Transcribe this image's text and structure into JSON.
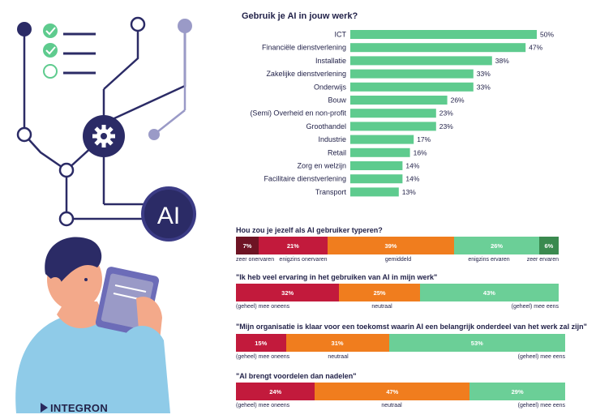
{
  "brand": {
    "name": "INTEGRON"
  },
  "colors": {
    "bar_green": "#5ecb8e",
    "dark_red": "#6e1424",
    "red": "#c21a3c",
    "orange": "#f07d1e",
    "green": "#6bcf97",
    "dark_green": "#3a8a4f",
    "navy": "#2b2b66"
  },
  "illustration": {
    "ai_label": "AI",
    "icons": [
      "check-icon",
      "check-icon",
      "empty-circle-icon",
      "gear-icon"
    ]
  },
  "chart_data": [
    {
      "type": "bar",
      "orientation": "horizontal",
      "title": "Gebruik je AI in jouw werk?",
      "categories": [
        "ICT",
        "Financiële dienstverlening",
        "Installatie",
        "Zakelijke dienstverlening",
        "Onderwijs",
        "Bouw",
        "(Semi) Overheid en non-profit",
        "Groothandel",
        "Industrie",
        "Retail",
        "Zorg en welzijn",
        "Facilitaire dienstverlening",
        "Transport"
      ],
      "values": [
        50,
        47,
        38,
        33,
        33,
        26,
        23,
        23,
        17,
        16,
        14,
        14,
        13
      ],
      "value_labels": [
        "50%",
        "47%",
        "38%",
        "33%",
        "33%",
        "26%",
        "23%",
        "23%",
        "17%",
        "16%",
        "14%",
        "14%",
        "13%"
      ],
      "xlim": [
        0,
        50
      ]
    },
    {
      "type": "bar",
      "orientation": "stacked-horizontal",
      "title": "Hou zou je jezelf als AI gebruiker typeren?",
      "segments": [
        {
          "value": 7,
          "label": "7%",
          "color": "#6e1424"
        },
        {
          "value": 21,
          "label": "21%",
          "color": "#c21a3c"
        },
        {
          "value": 39,
          "label": "39%",
          "color": "#f07d1e"
        },
        {
          "value": 26,
          "label": "26%",
          "color": "#6bcf97"
        },
        {
          "value": 6,
          "label": "6%",
          "color": "#3a8a4f"
        }
      ],
      "axis_labels": [
        "zeer onervaren",
        "enigzins onervaren",
        "gemiddeld",
        "enigzins ervaren",
        "zeer ervaren"
      ]
    },
    {
      "type": "bar",
      "orientation": "stacked-horizontal",
      "title": "\"Ik heb veel ervaring in het gebruiken van AI in mijn werk\"",
      "segments": [
        {
          "value": 32,
          "label": "32%",
          "color": "#c21a3c"
        },
        {
          "value": 25,
          "label": "25%",
          "color": "#f07d1e"
        },
        {
          "value": 43,
          "label": "43%",
          "color": "#6bcf97"
        }
      ],
      "axis_labels": [
        "(geheel) mee oneens",
        "neutraal",
        "(geheel) mee eens"
      ]
    },
    {
      "type": "bar",
      "orientation": "stacked-horizontal",
      "title": "\"Mijn organisatie is klaar voor een toekomst waarin AI een belangrijk onderdeel van het werk zal zijn\"",
      "segments": [
        {
          "value": 15,
          "label": "15%",
          "color": "#c21a3c"
        },
        {
          "value": 31,
          "label": "31%",
          "color": "#f07d1e"
        },
        {
          "value": 53,
          "label": "53%",
          "color": "#6bcf97"
        }
      ],
      "axis_labels": [
        "(geheel) mee oneens",
        "neutraal",
        "(geheel) mee eens"
      ]
    },
    {
      "type": "bar",
      "orientation": "stacked-horizontal",
      "title": "\"AI brengt voordelen dan nadelen\"",
      "segments": [
        {
          "value": 24,
          "label": "24%",
          "color": "#c21a3c"
        },
        {
          "value": 47,
          "label": "47%",
          "color": "#f07d1e"
        },
        {
          "value": 29,
          "label": "29%",
          "color": "#6bcf97"
        }
      ],
      "axis_labels": [
        "(geheel) mee oneens",
        "neutraal",
        "(geheel) mee eens"
      ]
    }
  ]
}
